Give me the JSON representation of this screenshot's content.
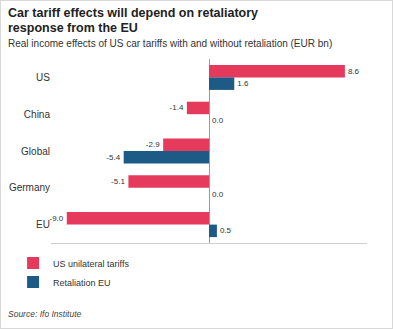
{
  "chart_data": {
    "type": "bar",
    "orientation": "horizontal",
    "title": "Car tariff effects will depend on retaliatory response from the EU",
    "subtitle": "Real income effects of US car tariffs with and without retaliation (EUR bn)",
    "source": "Source: Ifo Institute",
    "categories": [
      "US",
      "China",
      "Global",
      "Germany",
      "EU"
    ],
    "series": [
      {
        "name": "US unilateral tariffs",
        "color": "#e63a5c",
        "values": [
          8.6,
          -1.4,
          -2.9,
          -5.1,
          -9.0
        ],
        "value_labels": [
          "8.6",
          "-1.4",
          "-2.9",
          "-5.1",
          "-9.0"
        ]
      },
      {
        "name": "Retaliation EU",
        "color": "#1d5b86",
        "values": [
          1.6,
          0.0,
          -5.4,
          0.0,
          0.5
        ],
        "value_labels": [
          "1.6",
          "0.0",
          "-5.4",
          "0.0",
          "0.5"
        ]
      }
    ],
    "xlim": [
      -10,
      10
    ],
    "xticks": [],
    "data_labels": true,
    "tick_labels": "y",
    "grid": false,
    "legend": "bottom left"
  }
}
